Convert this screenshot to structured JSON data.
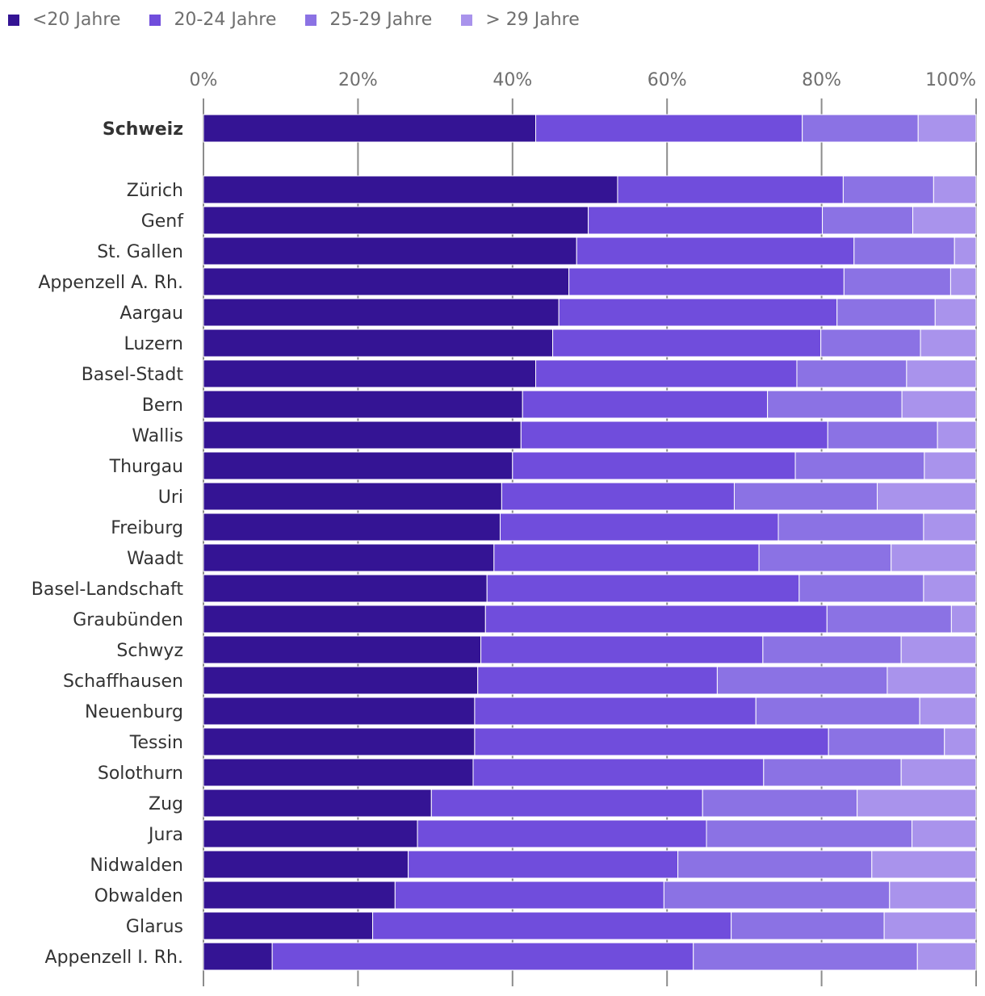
{
  "chart_data": {
    "type": "bar",
    "orientation": "horizontal",
    "stacked": true,
    "title": "",
    "xlabel": "",
    "ylabel": "",
    "xlim": [
      0,
      100
    ],
    "x_ticks": [
      "0%",
      "20%",
      "40%",
      "60%",
      "80%",
      "100%"
    ],
    "grid": true,
    "legend_position": "top-left",
    "highlight_category": "Schweiz",
    "categories": [
      "Schweiz",
      "Zürich",
      "Genf",
      "St. Gallen",
      "Appenzell A. Rh.",
      "Aargau",
      "Luzern",
      "Basel-Stadt",
      "Bern",
      "Wallis",
      "Thurgau",
      "Uri",
      "Freiburg",
      "Waadt",
      "Basel-Landschaft",
      "Graubünden",
      "Schwyz",
      "Schaffhausen",
      "Neuenburg",
      "Tessin",
      "Solothurn",
      "Zug",
      "Jura",
      "Nidwalden",
      "Obwalden",
      "Glarus",
      "Appenzell I. Rh."
    ],
    "series": [
      {
        "name": "<20 Jahre",
        "color": "#341494",
        "values": [
          43.0,
          53.6,
          49.8,
          48.3,
          47.3,
          46.0,
          45.2,
          43.0,
          41.3,
          41.1,
          40.0,
          38.6,
          38.4,
          37.6,
          36.7,
          36.5,
          35.9,
          35.5,
          35.1,
          35.1,
          34.9,
          29.5,
          27.7,
          26.5,
          24.8,
          21.9,
          8.9
        ]
      },
      {
        "name": "20-24 Jahre",
        "color": "#704ddc",
        "values": [
          34.5,
          29.2,
          30.3,
          35.9,
          35.6,
          36.0,
          34.7,
          33.8,
          31.7,
          39.7,
          36.6,
          30.1,
          36.0,
          34.3,
          40.4,
          44.2,
          36.5,
          31.0,
          36.4,
          45.8,
          37.6,
          35.1,
          37.4,
          34.9,
          34.8,
          46.4,
          54.5
        ]
      },
      {
        "name": "25-29 Jahre",
        "color": "#8b72e4",
        "values": [
          15.0,
          11.7,
          11.7,
          13.0,
          13.8,
          12.7,
          12.9,
          14.2,
          17.4,
          14.2,
          16.7,
          18.5,
          18.8,
          17.1,
          16.1,
          16.1,
          17.9,
          22.0,
          21.2,
          15.0,
          17.8,
          20.0,
          26.6,
          25.1,
          29.2,
          19.8,
          29.0
        ]
      },
      {
        "name": "> 29 Jahre",
        "color": "#a993ec",
        "values": [
          7.5,
          5.5,
          8.2,
          2.8,
          3.3,
          5.3,
          7.2,
          9.0,
          9.6,
          5.0,
          6.7,
          12.8,
          6.8,
          11.0,
          6.8,
          3.2,
          9.7,
          11.5,
          7.3,
          4.1,
          9.7,
          15.4,
          8.3,
          13.5,
          11.2,
          11.9,
          7.6
        ]
      }
    ]
  }
}
